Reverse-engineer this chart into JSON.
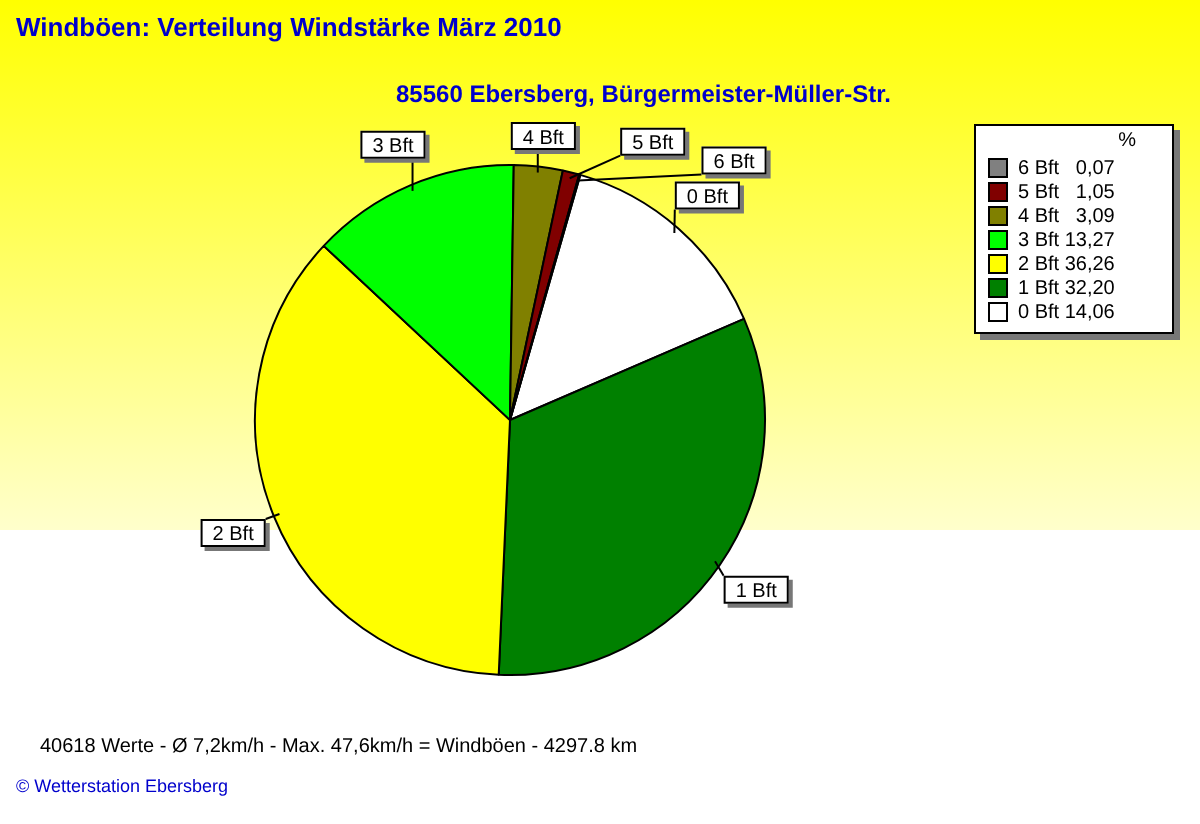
{
  "chart_data": {
    "type": "pie",
    "title": "Windböen: Verteilung Windstärke  März 2010",
    "subtitle": "85560 Ebersberg, Bürgermeister-Müller-Str.",
    "legend_title": "%",
    "legend": "top right",
    "categories": [
      "0 Bft",
      "1 Bft",
      "2 Bft",
      "3 Bft",
      "4 Bft",
      "5 Bft",
      "6 Bft"
    ],
    "values": [
      14.06,
      32.2,
      36.26,
      13.27,
      3.09,
      1.05,
      0.07
    ],
    "value_labels": [
      "14,06",
      "32,20",
      "36,26",
      "13,27",
      "3,09",
      "1,05",
      "0,07"
    ],
    "colors": [
      "#ffffff",
      "#008000",
      "#ffff00",
      "#00ff00",
      "#808000",
      "#800000",
      "#808080"
    ],
    "annotations": [
      "40618 Werte   -   Ø 7,2km/h   -   Max. 47,6km/h = Windböen   -   4297.8 km",
      "© Wetterstation Ebersberg"
    ]
  }
}
